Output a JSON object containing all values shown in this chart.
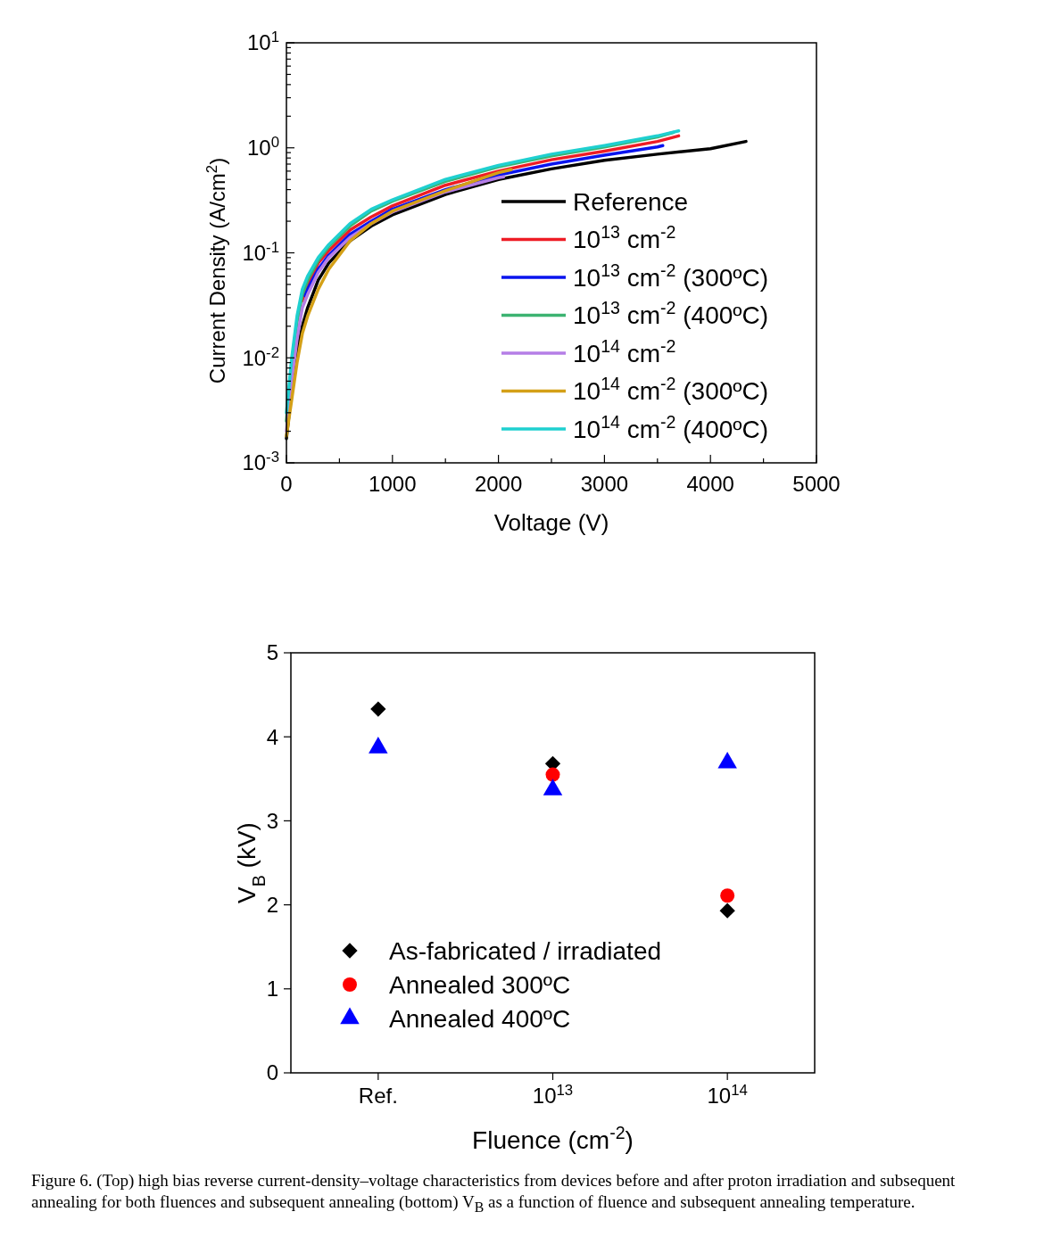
{
  "chart_data": [
    {
      "type": "line",
      "xlabel": "Voltage (V)",
      "ylabel": "Current Density (A/cm$^{2}$)",
      "log": "y",
      "xlim": [
        0,
        5000
      ],
      "ylim": [
        0.001,
        10
      ],
      "xticks": [
        0,
        {
          "value": 500,
          "label": null
        },
        1000,
        {
          "value": 1500,
          "label": null
        },
        2000,
        {
          "value": 2500,
          "label": null
        },
        3000,
        {
          "value": 3500,
          "label": null
        },
        4000,
        {
          "value": 4500,
          "label": null
        },
        5000
      ],
      "yticks": [
        {
          "value": 0.001,
          "label": "10$^{-3}$"
        },
        {
          "value": 0.002,
          "label": null
        },
        {
          "value": 0.003,
          "label": null
        },
        {
          "value": 0.004,
          "label": null
        },
        {
          "value": 0.005,
          "label": null
        },
        {
          "value": 0.006,
          "label": null
        },
        {
          "value": 0.007,
          "label": null
        },
        {
          "value": 0.008,
          "label": null
        },
        {
          "value": 0.009,
          "label": null
        },
        {
          "value": 0.01,
          "label": "10$^{-2}$"
        },
        {
          "value": 0.02,
          "label": null
        },
        {
          "value": 0.03,
          "label": null
        },
        {
          "value": 0.04,
          "label": null
        },
        {
          "value": 0.05,
          "label": null
        },
        {
          "value": 0.06,
          "label": null
        },
        {
          "value": 0.07,
          "label": null
        },
        {
          "value": 0.08,
          "label": null
        },
        {
          "value": 0.09,
          "label": null
        },
        {
          "value": 0.1,
          "label": "10$^{-1}$"
        },
        {
          "value": 0.2,
          "label": null
        },
        {
          "value": 0.3,
          "label": null
        },
        {
          "value": 0.4,
          "label": null
        },
        {
          "value": 0.5,
          "label": null
        },
        {
          "value": 0.6,
          "label": null
        },
        {
          "value": 0.7,
          "label": null
        },
        {
          "value": 0.8,
          "label": null
        },
        {
          "value": 0.9,
          "label": null
        },
        {
          "value": 1,
          "label": "10$^{0}$"
        },
        {
          "value": 2,
          "label": null
        },
        {
          "value": 3,
          "label": null
        },
        {
          "value": 4,
          "label": null
        },
        {
          "value": 5,
          "label": null
        },
        {
          "value": 6,
          "label": null
        },
        {
          "value": 7,
          "label": null
        },
        {
          "value": 8,
          "label": null
        },
        {
          "value": 9,
          "label": null
        },
        {
          "value": 10,
          "label": "10$^{1}$"
        }
      ],
      "grid": false,
      "legend": "bottom right",
      "marker": "none",
      "line_style": "solid",
      "series": [
        {
          "name": "Reference",
          "color": "#000000",
          "x": [
            0,
            50,
            100,
            150,
            200,
            300,
            400,
            600,
            800,
            1000,
            1500,
            2000,
            2500,
            3000,
            3500,
            4000,
            4335
          ],
          "values": [
            0.0017,
            0.005,
            0.011,
            0.02,
            0.03,
            0.055,
            0.08,
            0.13,
            0.18,
            0.23,
            0.36,
            0.5,
            0.63,
            0.76,
            0.87,
            0.98,
            1.15
          ]
        },
        {
          "name": "10$^{13}$ cm$^{-2}$",
          "color": "#ee1c25",
          "x": [
            150,
            200,
            300,
            400,
            600,
            800,
            1000,
            1500,
            2000,
            2500,
            3000,
            3500,
            3700
          ],
          "values": [
            0.035,
            0.05,
            0.08,
            0.105,
            0.165,
            0.22,
            0.28,
            0.44,
            0.6,
            0.77,
            0.93,
            1.15,
            1.3
          ]
        },
        {
          "name": "10$^{13}$ cm$^{-2}$ (300ºC)",
          "color": "#0a14ee",
          "x": [
            175,
            200,
            300,
            400,
            600,
            800,
            1000,
            1500,
            2000,
            2500,
            3000,
            3500,
            3550
          ],
          "values": [
            0.039,
            0.045,
            0.07,
            0.095,
            0.15,
            0.2,
            0.26,
            0.4,
            0.55,
            0.7,
            0.85,
            1.02,
            1.05
          ]
        },
        {
          "name": "10$^{13}$ cm$^{-2}$ (400ºC)",
          "color": "#3cb371",
          "x": [
            0,
            50,
            100,
            150,
            200,
            300,
            400,
            600,
            800,
            1000,
            1500,
            2000,
            2500,
            3000,
            3500,
            3650
          ],
          "values": [
            0.0025,
            0.009,
            0.022,
            0.04,
            0.055,
            0.085,
            0.115,
            0.18,
            0.25,
            0.31,
            0.48,
            0.66,
            0.84,
            1.02,
            1.27,
            1.4
          ]
        },
        {
          "name": "10$^{14}$ cm$^{-2}$",
          "color": "#b57ee6",
          "x": [
            0,
            50,
            100,
            150,
            200,
            300,
            400,
            600,
            800,
            1000,
            1500,
            2000,
            2050
          ],
          "values": [
            0.002,
            0.006,
            0.015,
            0.03,
            0.04,
            0.065,
            0.09,
            0.14,
            0.19,
            0.245,
            0.38,
            0.52,
            0.53
          ]
        },
        {
          "name": "10$^{14}$ cm$^{-2}$ (300ºC)",
          "color": "#d4a017",
          "x": [
            0,
            50,
            100,
            150,
            200,
            300,
            400,
            600,
            800,
            1000,
            1500,
            2000,
            2120
          ],
          "values": [
            0.0018,
            0.004,
            0.009,
            0.017,
            0.025,
            0.045,
            0.07,
            0.13,
            0.19,
            0.25,
            0.39,
            0.58,
            0.62
          ]
        },
        {
          "name": "10$^{14}$ cm$^{-2}$ (400ºC)",
          "color": "#1fd0d0",
          "x": [
            0,
            50,
            100,
            150,
            200,
            300,
            400,
            600,
            800,
            1000,
            1500,
            2000,
            2500,
            3000,
            3500,
            3700
          ],
          "values": [
            0.003,
            0.01,
            0.025,
            0.045,
            0.06,
            0.09,
            0.12,
            0.19,
            0.26,
            0.32,
            0.5,
            0.68,
            0.87,
            1.05,
            1.3,
            1.45
          ]
        }
      ]
    },
    {
      "type": "scatter",
      "xlabel": "Fluence (cm$^{-2}$)",
      "ylabel": "V$_{B}$ (kV)",
      "categories": [
        "Ref.",
        "10$^{13}$",
        "10$^{14}$"
      ],
      "ylim": [
        0,
        5
      ],
      "yticks": [
        0,
        1,
        2,
        3,
        4,
        5
      ],
      "grid": false,
      "legend": "bottom left",
      "annotations": [
        "Figure 6. (Top) high bias reverse current-density–voltage characteristics from devices before and after proton irradiation and subsequent annealing for both fluences and subsequent annealing (bottom) V$_{B}$ as a function of fluence and subsequent annealing temperature."
      ],
      "series": [
        {
          "name": "As-fabricated / irradiated",
          "color": "#000000",
          "marker": "diamond",
          "values": [
            4.33,
            3.68,
            1.93
          ]
        },
        {
          "name": "Annealed 300ºC",
          "color": "#ff0000",
          "marker": "circle",
          "values": [
            null,
            3.55,
            2.11
          ]
        },
        {
          "name": "Annealed 400ºC",
          "color": "#0000ff",
          "marker": "triangle",
          "values": [
            3.87,
            3.37,
            3.69
          ]
        }
      ]
    }
  ]
}
